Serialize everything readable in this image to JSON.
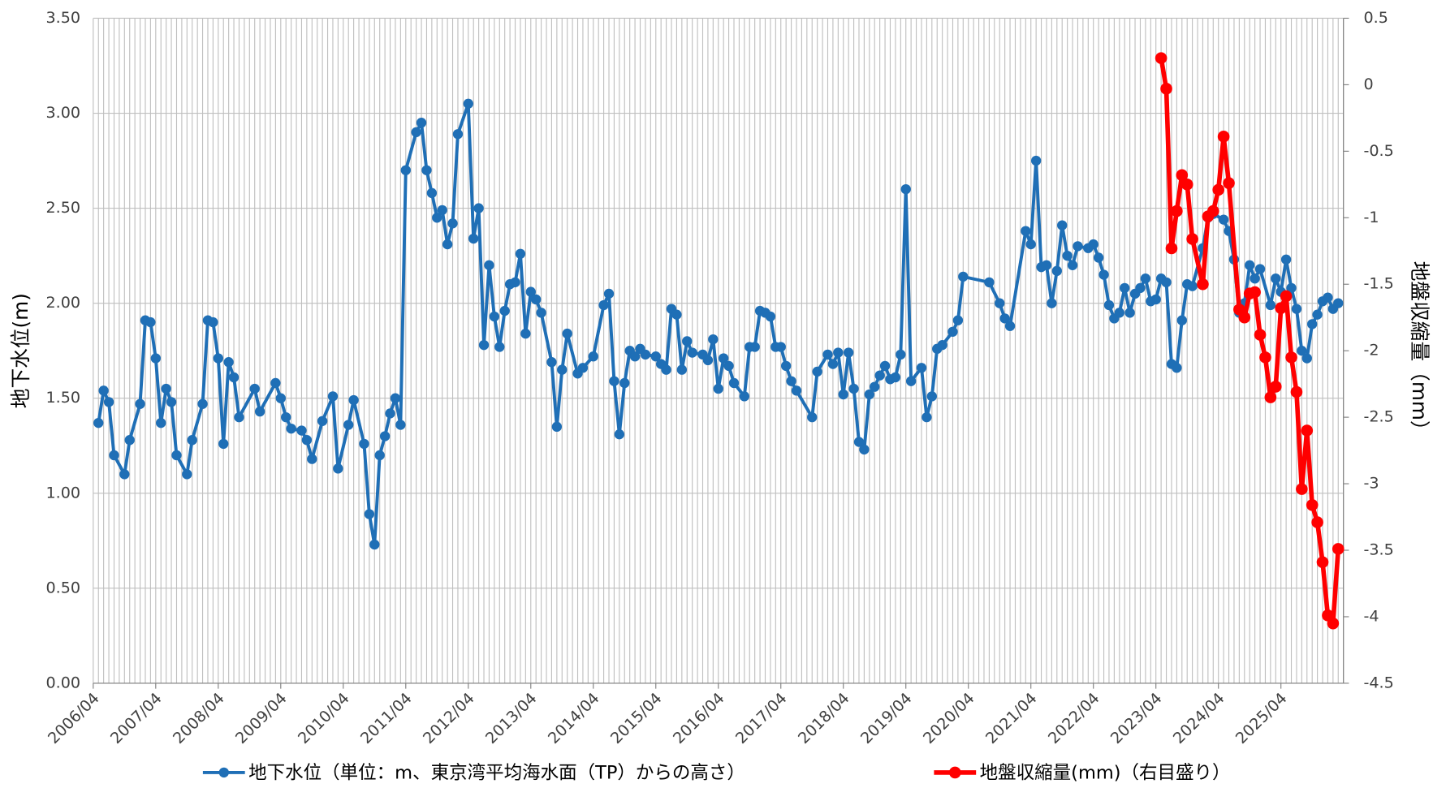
{
  "chart_data": {
    "type": "line",
    "xlim": [
      "2006/04",
      "2026/04"
    ],
    "xticks": [
      "2006/04",
      "2007/04",
      "2008/04",
      "2009/04",
      "2010/04",
      "2011/04",
      "2012/04",
      "2013/04",
      "2014/04",
      "2015/04",
      "2016/04",
      "2017/04",
      "2018/04",
      "2019/04",
      "2020/04",
      "2021/04",
      "2022/04",
      "2023/04",
      "2024/04",
      "2025/04"
    ],
    "ylim": [
      0,
      3.5
    ],
    "yticks": [
      {
        "value": 0,
        "label": "0.00"
      },
      {
        "value": 0.5,
        "label": "0.50"
      },
      {
        "value": 1,
        "label": "1.00"
      },
      {
        "value": 1.5,
        "label": "1.50"
      },
      {
        "value": 2,
        "label": "2.00"
      },
      {
        "value": 2.5,
        "label": "2.50"
      },
      {
        "value": 3,
        "label": "3.00"
      },
      {
        "value": 3.5,
        "label": "3.50"
      }
    ],
    "y2lim": [
      -4.5,
      0.5
    ],
    "y2ticks": [
      -4.5,
      -4,
      -3.5,
      -3,
      -2.5,
      -2,
      -1.5,
      -1,
      -0.5,
      0,
      0.5
    ],
    "ylabel": "地下水位(m)",
    "y2label": "地盤収縮量（mm）",
    "grid": true,
    "legend": "bottom",
    "series": [
      {
        "name": "地下水位（単位：m、東京湾平均海水面（TP）からの高さ）",
        "color": "#1f6fb6",
        "axis": "y",
        "x": [
          "2006/05",
          "2006/06",
          "2006/07",
          "2006/08",
          "2006/10",
          "2006/11",
          "2007/01",
          "2007/02",
          "2007/03",
          "2007/04",
          "2007/05",
          "2007/06",
          "2007/07",
          "2007/08",
          "2007/10",
          "2007/11",
          "2008/01",
          "2008/02",
          "2008/03",
          "2008/04",
          "2008/05",
          "2008/06",
          "2008/07",
          "2008/08",
          "2008/11",
          "2008/12",
          "2009/03",
          "2009/04",
          "2009/05",
          "2009/06",
          "2009/08",
          "2009/09",
          "2009/10",
          "2009/12",
          "2010/02",
          "2010/03",
          "2010/05",
          "2010/06",
          "2010/08",
          "2010/09",
          "2010/10",
          "2010/11",
          "2010/12",
          "2011/01",
          "2011/02",
          "2011/03",
          "2011/04",
          "2011/06",
          "2011/07",
          "2011/08",
          "2011/09",
          "2011/10",
          "2011/11",
          "2011/12",
          "2012/01",
          "2012/02",
          "2012/04",
          "2012/05",
          "2012/06",
          "2012/07",
          "2012/08",
          "2012/09",
          "2012/10",
          "2012/11",
          "2012/12",
          "2013/01",
          "2013/02",
          "2013/03",
          "2013/04",
          "2013/05",
          "2013/06",
          "2013/08",
          "2013/09",
          "2013/10",
          "2013/11",
          "2014/01",
          "2014/02",
          "2014/04",
          "2014/06",
          "2014/07",
          "2014/08",
          "2014/09",
          "2014/10",
          "2014/11",
          "2014/12",
          "2015/01",
          "2015/02",
          "2015/04",
          "2015/05",
          "2015/06",
          "2015/07",
          "2015/08",
          "2015/09",
          "2015/10",
          "2015/11",
          "2016/01",
          "2016/02",
          "2016/03",
          "2016/04",
          "2016/05",
          "2016/06",
          "2016/07",
          "2016/09",
          "2016/10",
          "2016/11",
          "2016/12",
          "2017/01",
          "2017/02",
          "2017/03",
          "2017/04",
          "2017/05",
          "2017/06",
          "2017/07",
          "2017/10",
          "2017/11",
          "2018/01",
          "2018/02",
          "2018/03",
          "2018/04",
          "2018/05",
          "2018/06",
          "2018/07",
          "2018/08",
          "2018/09",
          "2018/10",
          "2018/11",
          "2018/12",
          "2019/01",
          "2019/02",
          "2019/03",
          "2019/04",
          "2019/05",
          "2019/07",
          "2019/08",
          "2019/09",
          "2019/10",
          "2019/11",
          "2020/01",
          "2020/02",
          "2020/03",
          "2020/08",
          "2020/10",
          "2020/11",
          "2020/12",
          "2021/03",
          "2021/04",
          "2021/05",
          "2021/06",
          "2021/07",
          "2021/08",
          "2021/09",
          "2021/10",
          "2021/11",
          "2021/12",
          "2022/01",
          "2022/03",
          "2022/04",
          "2022/05",
          "2022/06",
          "2022/07",
          "2022/08",
          "2022/09",
          "2022/10",
          "2022/11",
          "2022/12",
          "2023/01",
          "2023/02",
          "2023/03",
          "2023/04",
          "2023/05",
          "2023/06",
          "2023/07",
          "2023/08",
          "2023/09",
          "2023/10",
          "2023/11",
          "2024/01",
          "2024/02",
          "2024/03",
          "2024/05",
          "2024/06",
          "2024/07",
          "2024/08",
          "2024/09",
          "2024/10",
          "2024/11",
          "2024/12",
          "2025/02",
          "2025/03",
          "2025/04",
          "2025/05",
          "2025/06",
          "2025/07",
          "2025/08",
          "2025/09",
          "2025/10",
          "2025/11",
          "2025/12",
          "2026/01",
          "2026/02",
          "2026/03"
        ],
        "values": [
          1.37,
          1.54,
          1.48,
          1.2,
          1.1,
          1.28,
          1.47,
          1.91,
          1.9,
          1.71,
          1.37,
          1.55,
          1.48,
          1.2,
          1.1,
          1.28,
          1.47,
          1.91,
          1.9,
          1.71,
          1.26,
          1.69,
          1.61,
          1.4,
          1.55,
          1.43,
          1.58,
          1.5,
          1.4,
          1.34,
          1.33,
          1.28,
          1.18,
          1.38,
          1.51,
          1.13,
          1.36,
          1.49,
          1.26,
          0.89,
          0.73,
          1.2,
          1.3,
          1.42,
          1.5,
          1.36,
          2.7,
          2.9,
          2.95,
          2.7,
          2.58,
          2.45,
          2.49,
          2.31,
          2.42,
          2.89,
          3.05,
          2.34,
          2.5,
          1.78,
          2.2,
          1.93,
          1.77,
          1.96,
          2.1,
          2.11,
          2.26,
          1.84,
          2.06,
          2.02,
          1.95,
          1.69,
          1.35,
          1.65,
          1.84,
          1.63,
          1.66,
          1.72,
          1.99,
          2.05,
          1.59,
          1.31,
          1.58,
          1.75,
          1.72,
          1.76,
          1.73,
          1.72,
          1.68,
          1.65,
          1.97,
          1.94,
          1.65,
          1.8,
          1.74,
          1.73,
          1.7,
          1.81,
          1.55,
          1.71,
          1.67,
          1.58,
          1.51,
          1.77,
          1.77,
          1.96,
          1.95,
          1.93,
          1.77,
          1.77,
          1.67,
          1.59,
          1.54,
          1.4,
          1.64,
          1.73,
          1.68,
          1.74,
          1.52,
          1.74,
          1.55,
          1.27,
          1.23,
          1.52,
          1.56,
          1.62,
          1.67,
          1.6,
          1.61,
          1.73,
          2.6,
          1.59,
          1.66,
          1.4,
          1.51,
          1.76,
          1.78,
          1.85,
          1.91,
          2.14,
          2.11,
          2.0,
          1.92,
          1.88,
          2.38,
          2.31,
          2.75,
          2.19,
          2.2,
          2.0,
          2.17,
          2.41,
          2.25,
          2.2,
          2.3,
          2.29,
          2.31,
          2.24,
          2.15,
          1.99,
          1.92,
          1.95,
          2.08,
          1.95,
          2.05,
          2.08,
          2.13,
          2.01,
          2.02,
          2.13,
          2.11,
          1.68,
          1.66,
          1.91,
          2.1,
          2.09,
          2.29,
          2.45,
          2.47,
          2.44,
          2.38,
          2.23,
          1.95,
          2.0,
          2.2,
          2.13,
          2.18,
          1.99,
          2.13,
          2.06,
          2.23,
          2.08,
          1.97,
          1.75,
          1.71,
          1.89,
          1.94,
          2.01,
          2.03,
          1.97,
          2.0
        ]
      },
      {
        "name": "地盤収縮量(mm)（右目盛り）",
        "color": "#ff0000",
        "axis": "y2",
        "x": [
          "2023/05",
          "2023/06",
          "2023/07",
          "2023/08",
          "2023/09",
          "2023/10",
          "2023/11",
          "2024/01",
          "2024/02",
          "2024/03",
          "2024/04",
          "2024/05",
          "2024/06",
          "2024/08",
          "2024/09",
          "2024/10",
          "2024/11",
          "2024/12",
          "2025/01",
          "2025/02",
          "2025/03",
          "2025/04",
          "2025/05",
          "2025/06",
          "2025/07",
          "2025/08",
          "2025/09",
          "2025/10",
          "2025/11",
          "2025/12",
          "2026/01",
          "2026/02",
          "2026/03"
        ],
        "values": [
          0.2,
          -0.03,
          -1.23,
          -0.95,
          -0.68,
          -0.75,
          -1.16,
          -1.5,
          -0.99,
          -0.95,
          -0.79,
          -0.39,
          -0.74,
          -1.69,
          -1.75,
          -1.57,
          -1.56,
          -1.88,
          -2.05,
          -2.35,
          -2.27,
          -1.68,
          -1.59,
          -2.05,
          -2.31,
          -3.04,
          -2.6,
          -3.16,
          -3.29,
          -3.59,
          -3.99,
          -4.05,
          -3.49
        ]
      }
    ]
  }
}
